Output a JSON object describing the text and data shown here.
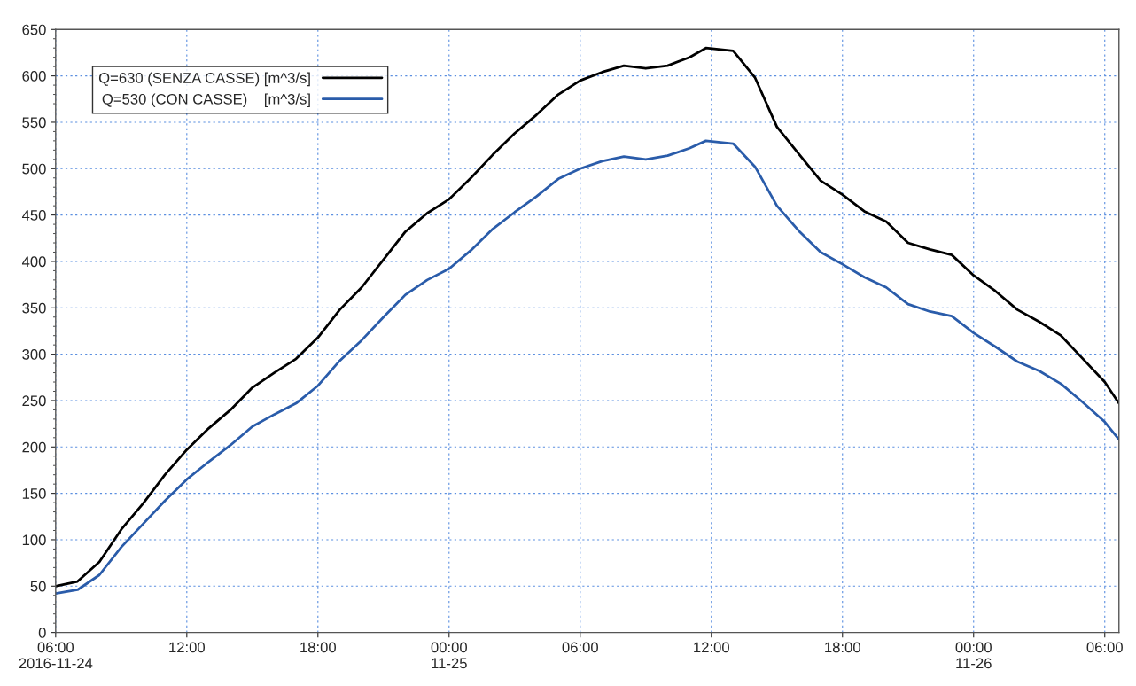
{
  "chart_data": {
    "type": "line",
    "x": [
      "2016-11-24T06:00",
      "2016-11-24T07:00",
      "2016-11-24T08:00",
      "2016-11-24T09:00",
      "2016-11-24T10:00",
      "2016-11-24T11:00",
      "2016-11-24T12:00",
      "2016-11-24T13:00",
      "2016-11-24T14:00",
      "2016-11-24T15:00",
      "2016-11-24T16:00",
      "2016-11-24T17:00",
      "2016-11-24T18:00",
      "2016-11-24T19:00",
      "2016-11-24T20:00",
      "2016-11-24T21:00",
      "2016-11-24T22:00",
      "2016-11-24T23:00",
      "2016-11-25T00:00",
      "2016-11-25T01:00",
      "2016-11-25T02:00",
      "2016-11-25T03:00",
      "2016-11-25T04:00",
      "2016-11-25T05:00",
      "2016-11-25T06:00",
      "2016-11-25T07:00",
      "2016-11-25T08:00",
      "2016-11-25T09:00",
      "2016-11-25T10:00",
      "2016-11-25T11:00",
      "2016-11-25T11:45",
      "2016-11-25T13:00",
      "2016-11-25T14:00",
      "2016-11-25T15:00",
      "2016-11-25T16:00",
      "2016-11-25T17:00",
      "2016-11-25T18:00",
      "2016-11-25T19:00",
      "2016-11-25T20:00",
      "2016-11-25T21:00",
      "2016-11-25T22:00",
      "2016-11-25T23:00",
      "2016-11-26T00:00",
      "2016-11-26T01:00",
      "2016-11-26T02:00",
      "2016-11-26T03:00",
      "2016-11-26T04:00",
      "2016-11-26T05:00",
      "2016-11-26T06:00",
      "2016-11-26T06:39"
    ],
    "series": [
      {
        "name": "Q=630 (SENZA CASSE) [m^3/s]",
        "color": "#000000",
        "values": [
          50,
          55,
          76,
          111,
          139,
          170,
          197,
          220,
          240,
          264,
          280,
          295,
          318,
          348,
          372,
          402,
          432,
          452,
          467,
          490,
          515,
          538,
          558,
          580,
          595,
          604,
          611,
          608,
          611,
          620,
          630,
          627,
          598,
          545,
          516,
          487,
          472,
          454,
          443,
          420,
          413,
          407,
          385,
          368,
          348,
          335,
          320,
          295,
          270,
          247
        ]
      },
      {
        "name": "Q=530 (CON CASSE)    [m^3/s]",
        "color": "#2a5caa",
        "values": [
          42,
          46,
          62,
          92,
          117,
          142,
          165,
          184,
          202,
          222,
          235,
          247,
          266,
          293,
          315,
          340,
          364,
          380,
          392,
          412,
          435,
          453,
          470,
          489,
          500,
          508,
          513,
          510,
          514,
          522,
          530,
          527,
          502,
          460,
          433,
          410,
          397,
          383,
          372,
          354,
          346,
          341,
          323,
          308,
          292,
          282,
          268,
          248,
          227,
          208
        ]
      }
    ],
    "xlim": [
      "2016-11-24T06:00",
      "2016-11-26T06:39"
    ],
    "xticks": [
      {
        "value": "2016-11-24T06:00",
        "label": "06:00\n2016-11-24"
      },
      {
        "value": "2016-11-24T12:00",
        "label": "12:00"
      },
      {
        "value": "2016-11-24T18:00",
        "label": "18:00"
      },
      {
        "value": "2016-11-25T00:00",
        "label": "00:00\n11-25"
      },
      {
        "value": "2016-11-25T06:00",
        "label": "06:00"
      },
      {
        "value": "2016-11-25T12:00",
        "label": "12:00"
      },
      {
        "value": "2016-11-25T18:00",
        "label": "18:00"
      },
      {
        "value": "2016-11-26T00:00",
        "label": "00:00\n11-26"
      },
      {
        "value": "2016-11-26T06:00",
        "label": "06:00"
      }
    ],
    "ylim": [
      0,
      650
    ],
    "yticks": [
      0,
      50,
      100,
      150,
      200,
      250,
      300,
      350,
      400,
      450,
      500,
      550,
      600,
      650
    ],
    "grid": true,
    "legend": "top left",
    "line_style": "solid",
    "marker": "none"
  }
}
